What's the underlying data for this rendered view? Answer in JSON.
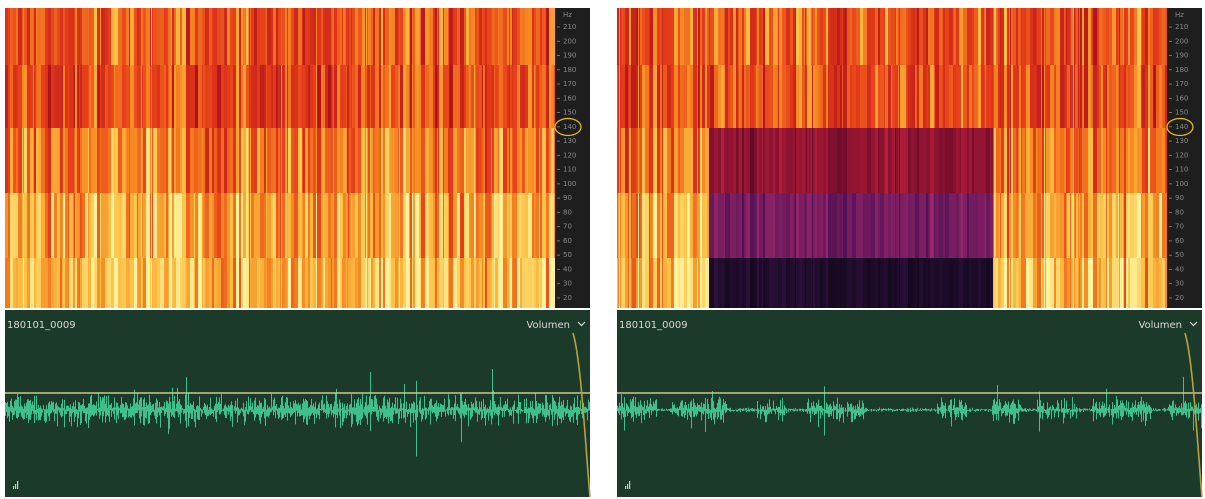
{
  "panels": [
    {
      "frequency_axis": {
        "unit": "Hz",
        "ticks": [
          210,
          200,
          190,
          180,
          170,
          160,
          150,
          140,
          130,
          120,
          110,
          100,
          90,
          80,
          70,
          60,
          50,
          40,
          30,
          20
        ]
      },
      "clip_name": "180101_0009",
      "track_control": "Volumen"
    },
    {
      "frequency_axis": {
        "unit": "Hz",
        "ticks": [
          210,
          200,
          190,
          180,
          170,
          160,
          150,
          140,
          130,
          120,
          110,
          100,
          90,
          80,
          70,
          60,
          50,
          40,
          30,
          20
        ]
      },
      "clip_name": "180101_0009",
      "track_control": "Volumen"
    }
  ]
}
